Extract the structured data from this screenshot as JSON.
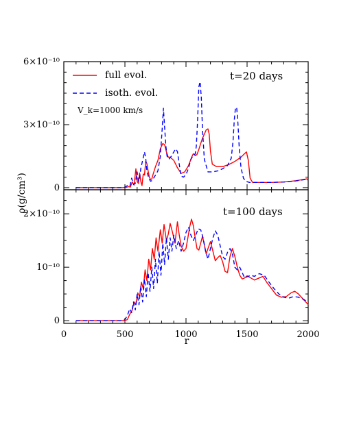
{
  "chart_data": [
    {
      "type": "line",
      "panel": "top",
      "annotation": "t=20 days",
      "note": "V_k=1000 km/s",
      "ylabel": "ρ(g/cm³)",
      "xlim": [
        0,
        2000
      ],
      "ylim": [
        -1e-11,
        6e-10
      ],
      "ytick_labels": [
        "6×10⁻¹⁰",
        "3×10⁻¹⁰",
        "0"
      ],
      "ytick_values": [
        6e-10,
        3e-10,
        0
      ],
      "legend": {
        "placement": "top-left"
      },
      "series": [
        {
          "name": "full evol.",
          "color": "#ff0000",
          "style": "solid",
          "x": [
            100,
            400,
            480,
            510,
            530,
            545,
            560,
            575,
            590,
            600,
            610,
            620,
            630,
            640,
            650,
            660,
            670,
            680,
            690,
            700,
            710,
            720,
            730,
            750,
            770,
            790,
            810,
            825,
            840,
            855,
            870,
            900,
            930,
            960,
            990,
            1020,
            1050,
            1060,
            1075,
            1090,
            1105,
            1120,
            1135,
            1150,
            1165,
            1180,
            1190,
            1200,
            1215,
            1250,
            1300,
            1350,
            1400,
            1450,
            1480,
            1495,
            1510,
            1525,
            1545,
            1600,
            1700,
            1800,
            1900,
            1990,
            2000
          ],
          "y": [
            0,
            0,
            1e-13,
            1e-12,
            5e-12,
            3e-12,
            2.8e-11,
            1.2e-11,
            9e-11,
            3e-11,
            2e-11,
            7e-11,
            3e-11,
            1e-11,
            6.5e-11,
            6e-11,
            1.25e-10,
            1.15e-10,
            8e-11,
            5e-11,
            3.8e-11,
            4.2e-11,
            6.2e-11,
            1e-10,
            1.3e-10,
            1.85e-10,
            2.1e-10,
            2.05e-10,
            1.7e-10,
            1.45e-10,
            1.45e-10,
            1.3e-10,
            9.5e-11,
            6.8e-11,
            7.5e-11,
            1.05e-10,
            1.5e-10,
            1.62e-10,
            1.52e-10,
            1.58e-10,
            1.82e-10,
            2.1e-10,
            2.35e-10,
            2.55e-10,
            2.75e-10,
            2.8e-10,
            2.55e-10,
            1.75e-10,
            1.12e-10,
            1e-10,
            1e-10,
            1.1e-10,
            1.25e-10,
            1.45e-10,
            1.62e-10,
            1.7e-10,
            1.3e-10,
            4.5e-11,
            2.5e-11,
            2.5e-11,
            2.5e-11,
            2.7e-11,
            3.3e-11,
            4.2e-11,
            3.5e-11
          ]
        },
        {
          "name": "isoth. evol.",
          "color": "#0000ff",
          "style": "dashed",
          "x": [
            100,
            400,
            470,
            500,
            520,
            540,
            555,
            570,
            585,
            600,
            610,
            620,
            630,
            645,
            660,
            670,
            680,
            695,
            710,
            725,
            745,
            770,
            790,
            805,
            815,
            825,
            835,
            845,
            860,
            880,
            900,
            915,
            930,
            945,
            960,
            980,
            1000,
            1020,
            1040,
            1060,
            1075,
            1085,
            1095,
            1105,
            1115,
            1125,
            1135,
            1150,
            1180,
            1220,
            1260,
            1300,
            1340,
            1370,
            1385,
            1395,
            1405,
            1415,
            1425,
            1435,
            1450,
            1470,
            1490,
            1520,
            1600,
            1700,
            1800,
            1900,
            1990,
            2000
          ],
          "y": [
            0,
            0,
            1e-13,
            2e-12,
            1e-11,
            5e-12,
            4.5e-11,
            1.5e-11,
            2e-11,
            7.5e-11,
            3e-11,
            4.5e-11,
            9e-11,
            1.3e-10,
            1.7e-10,
            1.4e-10,
            8e-11,
            4.5e-11,
            3e-11,
            3.5e-11,
            5.5e-11,
            8e-11,
            1.5e-10,
            2.8e-10,
            3.78e-10,
            2.9e-10,
            2e-10,
            1.5e-10,
            1.35e-10,
            1.5e-10,
            1.7e-10,
            1.85e-10,
            1.72e-10,
            1.1e-10,
            5.5e-11,
            5e-11,
            6.2e-11,
            9.2e-11,
            1.35e-10,
            1.55e-10,
            1.6e-10,
            2e-10,
            3.2e-10,
            4.8e-10,
            5.05e-10,
            4.3e-10,
            2.8e-10,
            1.35e-10,
            7.5e-11,
            7.5e-11,
            8e-11,
            9e-11,
            1.05e-10,
            1.4e-10,
            2.2e-10,
            3.2e-10,
            3.82e-10,
            3.8e-10,
            3.1e-10,
            2e-10,
            9.5e-11,
            4.5e-11,
            3e-11,
            2.5e-11,
            2.5e-11,
            2.5e-11,
            2.7e-11,
            3.2e-11,
            4e-11,
            3.5e-11
          ]
        }
      ]
    },
    {
      "type": "line",
      "panel": "bottom",
      "annotation": "t=100 days",
      "xlabel": "r",
      "xlim": [
        0,
        2000
      ],
      "ylim": [
        -5e-12,
        2.45e-10
      ],
      "xtick_labels": [
        "0",
        "500",
        "1000",
        "1500",
        "2000"
      ],
      "xtick_values": [
        0,
        500,
        1000,
        1500,
        2000
      ],
      "ytick_labels": [
        "2×10⁻¹⁰",
        "10⁻¹⁰",
        "0"
      ],
      "ytick_values": [
        2e-10,
        1e-10,
        0
      ],
      "series": [
        {
          "name": "full evol.",
          "color": "#ff0000",
          "style": "solid",
          "x": [
            100,
            480,
            500,
            520,
            540,
            560,
            575,
            590,
            605,
            620,
            635,
            650,
            665,
            680,
            695,
            710,
            725,
            740,
            755,
            770,
            790,
            805,
            820,
            840,
            855,
            870,
            890,
            910,
            930,
            945,
            960,
            980,
            1000,
            1015,
            1030,
            1045,
            1060,
            1075,
            1090,
            1105,
            1120,
            1135,
            1150,
            1165,
            1180,
            1200,
            1220,
            1240,
            1260,
            1280,
            1300,
            1320,
            1340,
            1360,
            1380,
            1400,
            1420,
            1440,
            1460,
            1480,
            1500,
            1530,
            1560,
            1600,
            1630,
            1660,
            1700,
            1740,
            1780,
            1820,
            1860,
            1890,
            1920,
            1960,
            2000
          ],
          "y": [
            0,
            0,
            1e-13,
            2e-12,
            1.2e-11,
            2e-11,
            3.5e-11,
            3e-11,
            5.2e-11,
            4.5e-11,
            7.2e-11,
            6e-11,
            9.5e-11,
            7.5e-11,
            1.15e-10,
            9.5e-11,
            1.35e-10,
            1.15e-10,
            1.55e-10,
            1.3e-10,
            1.7e-10,
            1.45e-10,
            1.8e-10,
            1.5e-10,
            1.62e-10,
            1.82e-10,
            1.65e-10,
            1.45e-10,
            1.85e-10,
            1.6e-10,
            1.4e-10,
            1.3e-10,
            1.35e-10,
            1.55e-10,
            1.75e-10,
            1.9e-10,
            1.78e-10,
            1.55e-10,
            1.35e-10,
            1.32e-10,
            1.45e-10,
            1.58e-10,
            1.42e-10,
            1.25e-10,
            1.35e-10,
            1.48e-10,
            1.3e-10,
            1.12e-10,
            1.18e-10,
            1.22e-10,
            1.1e-10,
            9.2e-11,
            9e-11,
            1.2e-10,
            1.35e-10,
            1.2e-10,
            1e-10,
            8.5e-11,
            7.8e-11,
            8e-11,
            8.4e-11,
            8e-11,
            7.6e-11,
            8e-11,
            8.3e-11,
            7.2e-11,
            6e-11,
            4.8e-11,
            4.4e-11,
            4.5e-11,
            5.2e-11,
            5.5e-11,
            5e-11,
            4e-11,
            3e-11
          ]
        },
        {
          "name": "isoth. evol.",
          "color": "#0000ff",
          "style": "dashed",
          "x": [
            100,
            460,
            480,
            500,
            520,
            540,
            555,
            570,
            585,
            600,
            615,
            630,
            645,
            660,
            675,
            690,
            705,
            720,
            735,
            750,
            765,
            780,
            795,
            810,
            825,
            840,
            855,
            870,
            885,
            900,
            920,
            940,
            960,
            980,
            1000,
            1020,
            1040,
            1060,
            1080,
            1100,
            1120,
            1140,
            1160,
            1180,
            1200,
            1220,
            1240,
            1260,
            1280,
            1300,
            1320,
            1340,
            1360,
            1380,
            1400,
            1420,
            1440,
            1460,
            1480,
            1500,
            1530,
            1560,
            1600,
            1640,
            1680,
            1720,
            1760,
            1800,
            1840,
            1880,
            1920,
            1960,
            2000
          ],
          "y": [
            0,
            0,
            1e-13,
            2e-12,
            1e-11,
            2.2e-11,
            1.5e-11,
            3.5e-11,
            2e-11,
            5e-11,
            3e-11,
            6.5e-11,
            3.5e-11,
            7.8e-11,
            4.5e-11,
            9e-11,
            5.5e-11,
            1e-10,
            6e-11,
            1.15e-10,
            7e-11,
            1.3e-10,
            8.5e-11,
            1.45e-10,
            1.05e-10,
            1.55e-10,
            1.15e-10,
            1.55e-10,
            1.3e-10,
            1.6e-10,
            1.35e-10,
            1.5e-10,
            1.3e-10,
            1.45e-10,
            1.65e-10,
            1.75e-10,
            1.6e-10,
            1.5e-10,
            1.6e-10,
            1.72e-10,
            1.7e-10,
            1.55e-10,
            1.3e-10,
            1.15e-10,
            1.35e-10,
            1.55e-10,
            1.68e-10,
            1.6e-10,
            1.4e-10,
            1.2e-10,
            1.15e-10,
            1.28e-10,
            1.35e-10,
            1.25e-10,
            1e-10,
            9.5e-11,
            1e-10,
            9e-11,
            8e-11,
            8.2e-11,
            8.5e-11,
            8.3e-11,
            8.8e-11,
            8.5e-11,
            7.2e-11,
            6e-11,
            5e-11,
            4.4e-11,
            4.2e-11,
            4.5e-11,
            4.4e-11,
            4e-11,
            3.5e-11
          ]
        }
      ]
    }
  ]
}
